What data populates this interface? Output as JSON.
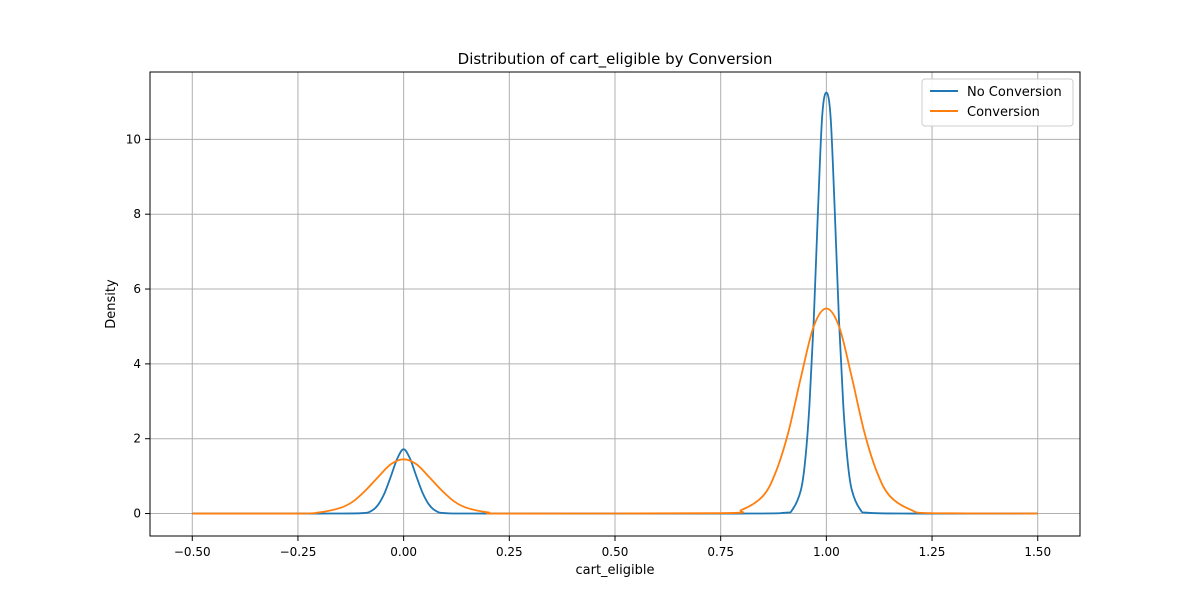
{
  "chart_data": {
    "type": "line",
    "title": "Distribution of  cart_eligible by Conversion",
    "xlabel": "cart_eligible",
    "ylabel": "Density",
    "xlim": [
      -0.6,
      1.6
    ],
    "ylim": [
      -0.6,
      11.8
    ],
    "xticks": [
      -0.5,
      -0.25,
      0.0,
      0.25,
      0.5,
      0.75,
      1.0,
      1.25,
      1.5
    ],
    "xtick_labels": [
      "−0.50",
      "−0.25",
      "0.00",
      "0.25",
      "0.50",
      "0.75",
      "1.00",
      "1.25",
      "1.50"
    ],
    "yticks": [
      0,
      2,
      4,
      6,
      8,
      10
    ],
    "ytick_labels": [
      "0",
      "2",
      "4",
      "6",
      "8",
      "10"
    ],
    "grid": true,
    "legend_position": "top-right",
    "series": [
      {
        "name": "No Conversion",
        "color": "#1f77b4",
        "x": [
          -0.5,
          -0.2,
          -0.1,
          -0.075,
          -0.06,
          -0.045,
          -0.03,
          -0.015,
          0.0,
          0.015,
          0.03,
          0.045,
          0.06,
          0.075,
          0.1,
          0.2,
          0.8,
          0.9,
          0.92,
          0.94,
          0.95,
          0.96,
          0.97,
          0.98,
          0.99,
          1.0,
          1.01,
          1.02,
          1.03,
          1.04,
          1.05,
          1.06,
          1.08,
          1.1,
          1.2,
          1.5
        ],
        "y": [
          0.0,
          0.0,
          0.01,
          0.08,
          0.24,
          0.55,
          1.0,
          1.47,
          1.72,
          1.47,
          1.0,
          0.55,
          0.24,
          0.08,
          0.01,
          0.0,
          0.0,
          0.02,
          0.11,
          0.64,
          1.43,
          2.9,
          5.13,
          8.05,
          10.6,
          11.25,
          10.6,
          8.05,
          5.13,
          2.9,
          1.43,
          0.64,
          0.11,
          0.02,
          0.0,
          0.0
        ]
      },
      {
        "name": "Conversion",
        "color": "#ff7f0e",
        "x": [
          -0.5,
          -0.25,
          -0.2,
          -0.15,
          -0.12,
          -0.09,
          -0.06,
          -0.03,
          0.0,
          0.03,
          0.06,
          0.09,
          0.12,
          0.15,
          0.2,
          0.25,
          0.75,
          0.8,
          0.85,
          0.88,
          0.91,
          0.94,
          0.97,
          1.0,
          1.03,
          1.06,
          1.09,
          1.12,
          1.15,
          1.2,
          1.25,
          1.5
        ],
        "y": [
          0.0,
          0.0,
          0.03,
          0.15,
          0.32,
          0.62,
          0.98,
          1.32,
          1.45,
          1.32,
          0.98,
          0.62,
          0.32,
          0.15,
          0.03,
          0.0,
          0.01,
          0.1,
          0.47,
          1.1,
          2.17,
          3.65,
          5.0,
          5.48,
          5.0,
          3.65,
          2.17,
          1.1,
          0.47,
          0.1,
          0.01,
          0.0
        ]
      }
    ]
  }
}
